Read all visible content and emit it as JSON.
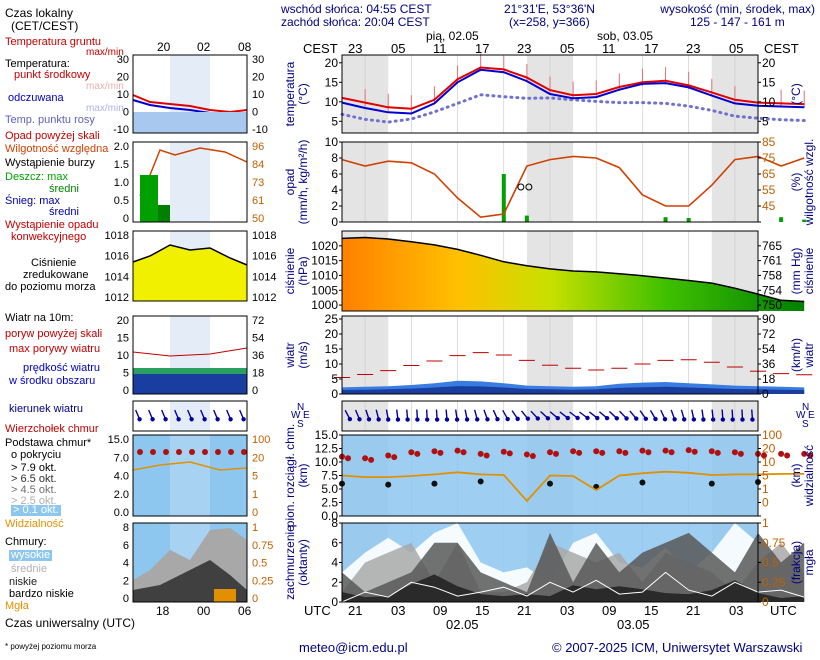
{
  "header": {
    "local_time_label": "Czas lokalny",
    "local_time_zone": "(CET/CEST)",
    "sunrise": "wschód słońca: 04:55 CEST",
    "sunset": "zachód słońca: 20:04 CEST",
    "coords": "21°31'E, 53°36'N",
    "grid": "(x=258, y=366)",
    "altitude_label": "wysokość (min, środek, max)",
    "altitude_values": "125 - 147 - 161 m",
    "tz_left": "CEST",
    "tz_right": "CEST",
    "day1": "pią, 02.05",
    "day2": "sob, 03.05",
    "top_hours": [
      "23",
      "05",
      "11",
      "17",
      "23",
      "05",
      "11",
      "17",
      "23",
      "05"
    ]
  },
  "legend": {
    "temp": {
      "title": "Temperatura gruntu",
      "subtitle": "max/min",
      "heading": "Temperatura:",
      "mid": "punkt środkowy",
      "mid_sub": "max/min",
      "perceived": "odczuwana",
      "perceived_sub": "max/min",
      "dew": "Temp. punktu rosy"
    },
    "precip": {
      "over": "Opad powyżej skali",
      "humidity": "Wilgotność względna",
      "storm": "Wystąpienie burzy",
      "rain_max": "Deszcz: max",
      "rain_mean": "średni",
      "snow_max": "Śnieg:   max",
      "snow_mean": "średni",
      "convective_1": "Wystąpienie opadu",
      "convective_2": "konwekcyjnego"
    },
    "pressure": {
      "l1": "Ciśnienie",
      "l2": "zredukowane",
      "l3": "do poziomu morza"
    },
    "wind": {
      "l1": "Wiatr na 10m:",
      "gust_over": "poryw powyżej skali",
      "gust_max": "max porywy wiatru",
      "mean_1": "prędkość wiatru",
      "mean_2": "w środku obszaru"
    },
    "wind_dir": "kierunek wiatru",
    "clouds": {
      "top": "Wierzchołek chmur",
      "base_1": "Podstawa chmur*",
      "base_2": "o pokryciu",
      "o79": "> 7.9 okt.",
      "o65": "> 6.5 okt.",
      "o45": "> 4.5 okt.",
      "o25": "> 2.5 okt.",
      "o01": "> 0.1 okt.",
      "visibility": "Widzialność"
    },
    "cover": {
      "title": "Chmury:",
      "high": "wysokie",
      "medium": "średnie",
      "low": "niskie",
      "very_low": "bardzo niskie",
      "fog": "Mgła"
    },
    "utc_label": "Czas uniwersalny (UTC)",
    "utc_hours": [
      "18",
      "00",
      "06"
    ],
    "top_hours": [
      "20",
      "02",
      "08"
    ],
    "footnote": "* powyżej poziomu morza"
  },
  "panel_titles": {
    "temp_left": [
      "temperatura",
      "(°C)"
    ],
    "temp_right": [
      "(°C)"
    ],
    "precip_left": [
      "opad",
      "(mm/h, kg/m²/h)"
    ],
    "precip_right": [
      "(%)",
      "wilgotność wzgl."
    ],
    "pres_left": [
      "ciśnienie",
      "(hPa)"
    ],
    "pres_right": [
      "(mm Hg)",
      "ciśnienie"
    ],
    "wind_left": [
      "wiatr",
      "(m/s)"
    ],
    "wind_right": [
      "(km/h)",
      "wiatr"
    ],
    "cloud_left": [
      "pion. rozciągł. chm.",
      "(km)"
    ],
    "cloud_right": [
      "(km)",
      "widzialność"
    ],
    "cover_left": [
      "zachmurzenie",
      "(oktanty)"
    ],
    "cover_right": [
      "(frakcja)",
      "mgła"
    ],
    "compass": {
      "n": "N",
      "w": "W",
      "e": "E",
      "s": "S"
    }
  },
  "axes": {
    "temp_left": [
      "20",
      "15",
      "10",
      "5"
    ],
    "temp_right": [
      "20",
      "15",
      "10",
      "5"
    ],
    "precip_left": [
      "10",
      "8",
      "6",
      "4",
      "2",
      "0"
    ],
    "precip_right": [
      "85",
      "75",
      "65",
      "55",
      "45"
    ],
    "pres_left": [
      "1020",
      "1015",
      "1010",
      "1005",
      "1000"
    ],
    "pres_right": [
      "765",
      "761",
      "758",
      "754",
      "750"
    ],
    "wind_left": [
      "25",
      "20",
      "15",
      "10",
      "5",
      "0"
    ],
    "wind_right": [
      "90",
      "72",
      "54",
      "36",
      "18",
      "0"
    ],
    "cloud_left": [
      "15.0",
      "12.5",
      "10.0",
      "7.5",
      "5.0",
      "2.5",
      "0.0"
    ],
    "cloud_right": [
      "100",
      "20",
      "10",
      "5",
      "1",
      "0"
    ],
    "cover_left": [
      "8",
      "6",
      "4",
      "2",
      "0"
    ],
    "cover_right": [
      "1",
      "0.75",
      "0.5",
      "0.25",
      "0"
    ],
    "bottom_hours": [
      "21",
      "03",
      "09",
      "15",
      "21",
      "03",
      "09",
      "15",
      "21",
      "03"
    ],
    "bottom_dates": [
      "02.05",
      "03.05"
    ],
    "utc_left": "UTC",
    "utc_right": "UTC",
    "legend_temp_l": [
      "30",
      "20",
      "10",
      "0",
      "-10"
    ],
    "legend_temp_r": [
      "30",
      "20",
      "10",
      "0",
      "-10"
    ],
    "legend_precip_l": [
      "2.0",
      "1.5",
      "1.0",
      "0.5",
      "0"
    ],
    "legend_precip_r": [
      "96",
      "84",
      "73",
      "61",
      "50"
    ],
    "legend_pres_l": [
      "1018",
      "1016",
      "1014",
      "1012"
    ],
    "legend_pres_r": [
      "1018",
      "1016",
      "1014",
      "1012"
    ],
    "legend_wind_l": [
      "20",
      "15",
      "10",
      "5",
      "0"
    ],
    "legend_wind_r": [
      "72",
      "54",
      "36",
      "18",
      "0"
    ],
    "legend_cloud_l": [
      "15.0",
      "7.0",
      "4.0",
      "2.0",
      "0.0"
    ],
    "legend_cloud_r": [
      "100",
      "20",
      "5",
      "1",
      "0"
    ],
    "legend_cover_l": [
      "8",
      "6",
      "4",
      "2",
      "0"
    ],
    "legend_cover_r": [
      "1",
      "0.75",
      "0.5",
      "0.25",
      "0"
    ]
  },
  "footer": {
    "email": "meteo@icm.edu.pl",
    "copyright": "© 2007-2025 ICM, Uniwersytet Warszawski"
  },
  "colors": {
    "temp_mid": "#e00000",
    "temp_perceived": "#0000d0",
    "dew": "#7070d0",
    "humidity": "#d04000",
    "rain": "#00a000",
    "pressure_high": "#ff9000",
    "pressure_low": "#008000",
    "wind": "#0000c0",
    "gust": "#c00000",
    "cloud_sky": "#8dc7f0",
    "cloud_top": "#b01010",
    "visibility": "#e09000",
    "title_blue": "#000080",
    "label_red": "#c00000",
    "legend_gray": "#b0b0b0"
  },
  "chart_data": [
    {
      "type": "line",
      "title": "temperatura",
      "x_hours_utc": [
        18,
        21,
        0,
        3,
        6,
        9,
        12,
        15,
        18,
        21,
        0,
        3,
        6,
        9,
        12,
        15,
        18,
        21,
        0,
        3,
        6
      ],
      "series": [
        {
          "name": "punkt środkowy",
          "values": [
            11,
            9.8,
            8.6,
            8.2,
            10.5,
            15.8,
            18.8,
            18.3,
            16.2,
            13,
            11.7,
            12,
            13.8,
            15,
            15.4,
            14.2,
            12.4,
            10.5,
            9.8,
            9.6,
            9.4
          ]
        },
        {
          "name": "odczuwana",
          "values": [
            9.8,
            8.4,
            7.3,
            7,
            9.6,
            15,
            18.2,
            17.6,
            15.3,
            12,
            10.9,
            11.2,
            13.1,
            14.6,
            14.8,
            13.7,
            11.6,
            9.6,
            9,
            8.8,
            8.6
          ]
        },
        {
          "name": "Temp. punktu rosy",
          "values": [
            6.8,
            5.5,
            4.8,
            5.6,
            7.4,
            9.6,
            11.8,
            11.3,
            10.9,
            11,
            10.5,
            10.1,
            9.8,
            9.8,
            9.6,
            8.9,
            7.8,
            6.3,
            5.8,
            5.4,
            5.2
          ]
        }
      ],
      "ylim": [
        2,
        22
      ]
    },
    {
      "type": "bar",
      "title": "opad",
      "series": [
        {
          "name": "Wilgotność względna",
          "values": [
            84,
            80,
            83,
            82,
            75,
            60,
            48,
            50,
            80,
            84,
            86,
            85,
            79,
            62,
            55,
            55,
            68,
            84,
            86,
            80,
            85
          ]
        }
      ],
      "rain_max_mmh": [
        0,
        0,
        0,
        0,
        0,
        0,
        0,
        6,
        0.8,
        0,
        0,
        0,
        0,
        0,
        0.6,
        0.5,
        0,
        0,
        0,
        0.6,
        0.3
      ],
      "ylim": [
        0,
        10
      ],
      "y2lim": [
        45,
        95
      ]
    },
    {
      "type": "area",
      "title": "ciśnienie",
      "series": [
        {
          "name": "ciśnienie",
          "values": [
            1022.5,
            1022.8,
            1022.3,
            1021.4,
            1020.3,
            1018.8,
            1016.8,
            1014.6,
            1013.3,
            1012.2,
            1011.5,
            1011.2,
            1010.6,
            1009.9,
            1009.1,
            1008.3,
            1007.4,
            1005.7,
            1003.7,
            1001.6,
            1001.2
          ]
        }
      ],
      "ylim": [
        998,
        1025
      ]
    },
    {
      "type": "bar",
      "title": "wiatr",
      "series": [
        {
          "name": "max porywy wiatru",
          "values": [
            5.5,
            6.5,
            7.8,
            9.5,
            11,
            12.8,
            13.8,
            13,
            11.2,
            9.6,
            8.6,
            8,
            8.6,
            10,
            11.2,
            11.4,
            10.6,
            9,
            7.6,
            6.8,
            6.4
          ]
        },
        {
          "name": "prędkość wiatru",
          "values": [
            2.2,
            2.4,
            2.6,
            3,
            3.6,
            4.4,
            4.2,
            3.6,
            2.8,
            2.6,
            2.4,
            2.6,
            3.4,
            3.8,
            4,
            3.6,
            3.2,
            2.8,
            2.6,
            2.4,
            2.2
          ]
        }
      ],
      "ylim": [
        0,
        26
      ]
    },
    {
      "type": "scatter",
      "title": "pion. rozciągł. chm.",
      "series": [
        {
          "name": "Wierzchołek chmur",
          "values": [
            11,
            10.7,
            11.2,
            11.8,
            12,
            12.1,
            11.5,
            11.9,
            11.4,
            11.8,
            12,
            12,
            12,
            12.1,
            12.1,
            12.2,
            12,
            11.8,
            11.5,
            11.5,
            11.5
          ]
        },
        {
          "name": "Widzialność",
          "values": [
            7.5,
            7.2,
            7.2,
            7.4,
            7.7,
            8.1,
            7.7,
            7.6,
            2.8,
            7.5,
            7.4,
            4.8,
            7.5,
            7.9,
            8.2,
            8,
            7.6,
            7.7,
            7.7,
            7.8,
            7.8
          ]
        }
      ],
      "ylim": [
        0,
        15
      ]
    },
    {
      "type": "area",
      "title": "zachmurzenie",
      "series": [
        {
          "name": "wysokie",
          "values": [
            3,
            5,
            6.5,
            5,
            7,
            8,
            4,
            3,
            3.5,
            2,
            6,
            7,
            4,
            3.5,
            5.5,
            3,
            5,
            8,
            6,
            7,
            5
          ]
        },
        {
          "name": "średnie",
          "values": [
            1,
            4,
            5,
            6,
            2,
            6,
            1,
            1,
            2,
            6,
            5,
            4,
            5,
            2,
            5,
            4,
            3,
            1,
            4,
            6,
            3
          ]
        },
        {
          "name": "niskie",
          "values": [
            3,
            1,
            2,
            3,
            6,
            6,
            3,
            2,
            1,
            7,
            2,
            6,
            3,
            5,
            6,
            7,
            5,
            3,
            7,
            4,
            6
          ]
        },
        {
          "name": "bardzo niskie",
          "values": [
            1,
            0.5,
            0.6,
            1.8,
            2.8,
            1.6,
            0.8,
            0.6,
            0.8,
            0.6,
            1.7,
            1.3,
            1.6,
            1.3,
            0.9,
            0.8,
            1.2,
            2.2,
            0.9,
            0.4,
            0.6
          ]
        }
      ],
      "ylim": [
        0,
        8
      ]
    }
  ]
}
